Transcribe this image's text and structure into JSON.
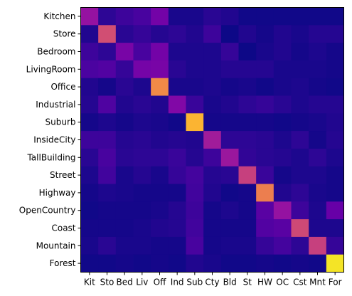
{
  "chart_data": {
    "type": "heatmap",
    "title": "",
    "xlabel": "",
    "ylabel": "",
    "colormap": "plasma",
    "vmin": 0.0,
    "vmax": 1.0,
    "row_labels": [
      "Kitchen",
      "Store",
      "Bedroom",
      "LivingRoom",
      "Office",
      "Industrial",
      "Suburb",
      "InsideCity",
      "TallBuilding",
      "Street",
      "Highway",
      "OpenCountry",
      "Coast",
      "Mountain",
      "Forest"
    ],
    "col_labels": [
      "Kit",
      "Sto",
      "Bed",
      "Liv",
      "Off",
      "Ind",
      "Sub",
      "Cty",
      "Bld",
      "St",
      "HW",
      "OC",
      "Cst",
      "Mnt",
      "For"
    ],
    "values": [
      [
        0.4,
        0.08,
        0.12,
        0.15,
        0.28,
        0.03,
        0.03,
        0.07,
        0.05,
        0.01,
        0.01,
        0.01,
        0.01,
        0.01,
        0.01
      ],
      [
        0.05,
        0.66,
        0.07,
        0.1,
        0.06,
        0.08,
        0.05,
        0.12,
        0.0,
        0.05,
        0.02,
        0.05,
        0.03,
        0.06,
        0.06
      ],
      [
        0.12,
        0.08,
        0.3,
        0.15,
        0.28,
        0.04,
        0.04,
        0.04,
        0.1,
        0.0,
        0.03,
        0.05,
        0.02,
        0.04,
        0.02
      ],
      [
        0.16,
        0.18,
        0.1,
        0.29,
        0.3,
        0.07,
        0.04,
        0.04,
        0.06,
        0.06,
        0.06,
        0.03,
        0.03,
        0.03,
        0.02
      ],
      [
        0.05,
        0.02,
        0.07,
        0.04,
        0.85,
        0.03,
        0.03,
        0.04,
        0.02,
        0.03,
        0.01,
        0.03,
        0.04,
        0.02,
        0.01
      ],
      [
        0.06,
        0.17,
        0.05,
        0.07,
        0.05,
        0.33,
        0.11,
        0.03,
        0.05,
        0.08,
        0.1,
        0.07,
        0.04,
        0.06,
        0.06
      ],
      [
        0.02,
        0.04,
        0.02,
        0.04,
        0.03,
        0.01,
        0.93,
        0.02,
        0.02,
        0.02,
        0.02,
        0.01,
        0.02,
        0.03,
        0.05
      ],
      [
        0.12,
        0.12,
        0.06,
        0.07,
        0.05,
        0.06,
        0.05,
        0.44,
        0.08,
        0.08,
        0.07,
        0.04,
        0.08,
        0.02,
        0.06
      ],
      [
        0.07,
        0.15,
        0.07,
        0.08,
        0.08,
        0.11,
        0.06,
        0.12,
        0.42,
        0.09,
        0.07,
        0.06,
        0.04,
        0.08,
        0.04
      ],
      [
        0.04,
        0.13,
        0.03,
        0.06,
        0.03,
        0.1,
        0.14,
        0.06,
        0.07,
        0.6,
        0.11,
        0.02,
        0.04,
        0.04,
        0.02
      ],
      [
        0.02,
        0.04,
        0.03,
        0.02,
        0.02,
        0.02,
        0.13,
        0.05,
        0.01,
        0.02,
        0.82,
        0.05,
        0.08,
        0.03,
        0.02
      ],
      [
        0.01,
        0.02,
        0.02,
        0.02,
        0.03,
        0.06,
        0.12,
        0.02,
        0.04,
        0.02,
        0.2,
        0.4,
        0.12,
        0.04,
        0.24
      ],
      [
        0.02,
        0.02,
        0.02,
        0.03,
        0.05,
        0.06,
        0.13,
        0.02,
        0.02,
        0.02,
        0.18,
        0.2,
        0.64,
        0.04,
        0.04
      ],
      [
        0.03,
        0.07,
        0.03,
        0.03,
        0.02,
        0.02,
        0.15,
        0.02,
        0.03,
        0.03,
        0.1,
        0.14,
        0.08,
        0.6,
        0.1
      ],
      [
        0.01,
        0.01,
        0.02,
        0.01,
        0.02,
        0.01,
        0.05,
        0.03,
        0.01,
        0.01,
        0.02,
        0.01,
        0.02,
        0.01,
        0.98
      ]
    ]
  }
}
